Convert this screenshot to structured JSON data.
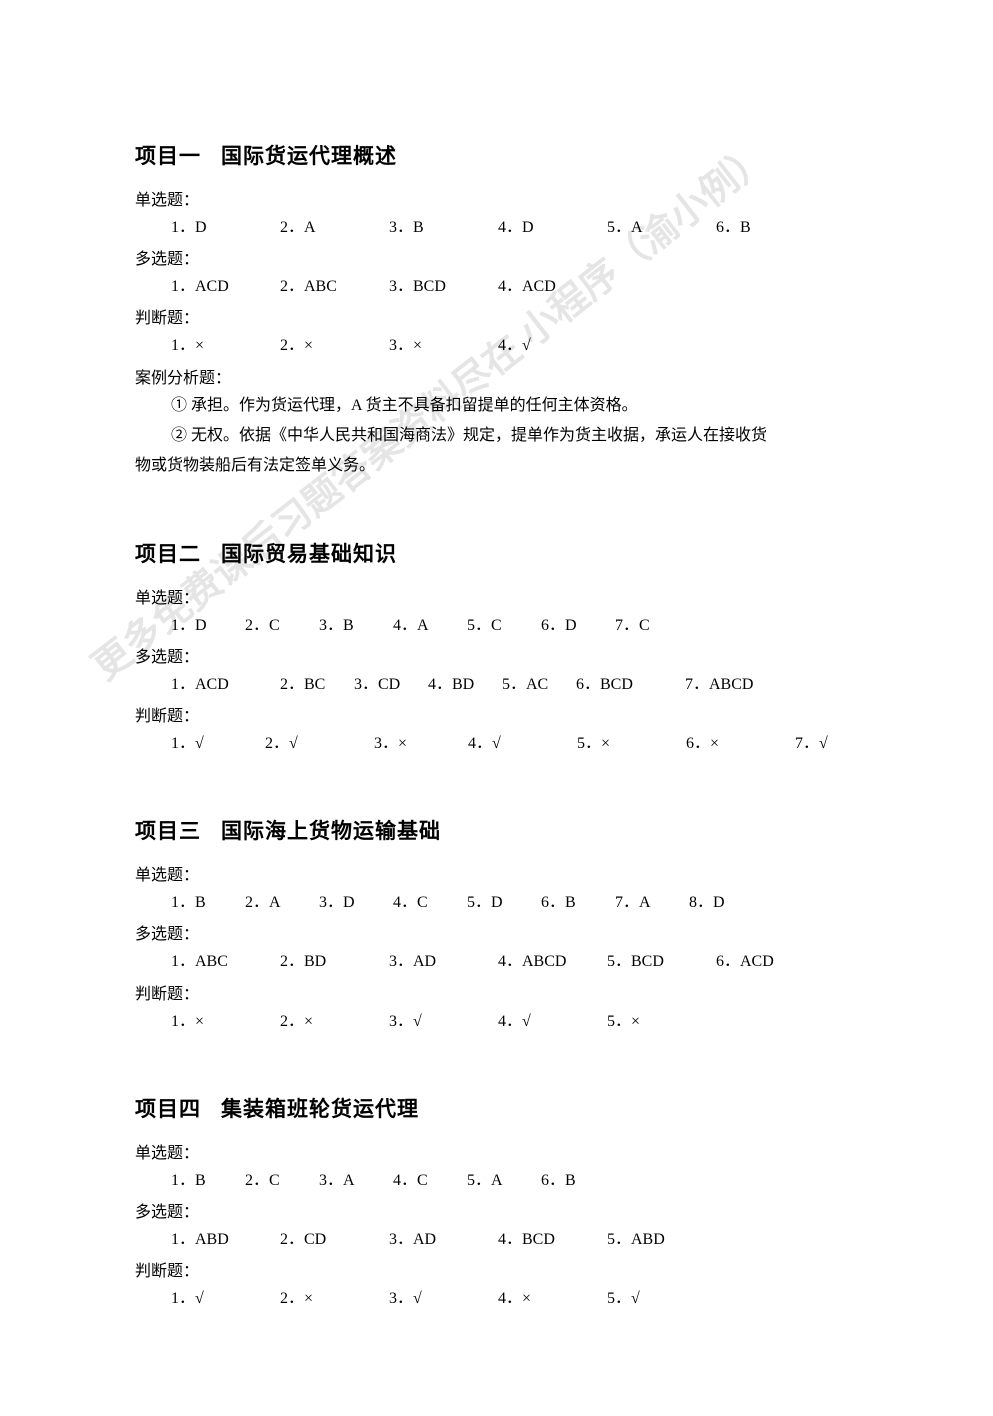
{
  "watermark": "更多免费课后习题答案资料尽在\n小程序（渝小例）",
  "sections": [
    {
      "title_prefix": "项目一",
      "title_main": "国际货运代理概述",
      "blocks": [
        {
          "label": "单选题：",
          "items": [
            "1．D",
            "2．A",
            "3．B",
            "4．D",
            "5．A",
            "6．B"
          ],
          "widths": [
            105,
            105,
            105,
            105,
            105,
            80
          ]
        },
        {
          "label": "多选题：",
          "items": [
            "1．ACD",
            "2．ABC",
            "3．BCD",
            "4．ACD"
          ],
          "widths": [
            105,
            105,
            105,
            105
          ]
        },
        {
          "label": "判断题：",
          "items": [
            "1．×",
            "2．×",
            "3．×",
            "4．√"
          ],
          "widths": [
            105,
            105,
            105,
            105
          ]
        }
      ],
      "case_label": "案例分析题：",
      "case_lines": [
        "① 承担。作为货运代理，A 货主不具备扣留提单的任何主体资格。",
        "② 无权。依据《中华人民共和国海商法》规定，提单作为货主收据，承运人在接收货"
      ],
      "case_cont": "物或货物装船后有法定签单义务。"
    },
    {
      "title_prefix": "项目二",
      "title_main": "国际贸易基础知识",
      "blocks": [
        {
          "label": "单选题：",
          "items": [
            "1．D",
            "2．C",
            "3．B",
            "4．A",
            "5．C",
            "6．D",
            "7．C"
          ],
          "widths": [
            70,
            70,
            70,
            70,
            70,
            70,
            70
          ]
        },
        {
          "label": "多选题：",
          "items": [
            "1．ACD",
            "2．BC",
            "3．CD",
            "4．BD",
            "5．AC",
            "6．BCD",
            "7．ABCD"
          ],
          "widths": [
            105,
            70,
            70,
            70,
            70,
            105,
            90
          ]
        },
        {
          "label": "判断题：",
          "items": [
            "1．√",
            "2．√",
            "3．×",
            "4．√",
            "5．×",
            "6．×",
            "7．√"
          ],
          "widths": [
            90,
            105,
            90,
            105,
            105,
            105,
            60
          ]
        }
      ]
    },
    {
      "title_prefix": "项目三",
      "title_main": "国际海上货物运输基础",
      "blocks": [
        {
          "label": "单选题：",
          "items": [
            "1．B",
            "2．A",
            "3．D",
            "4．C",
            "5．D",
            "6．B",
            "7．A",
            "8．D"
          ],
          "widths": [
            70,
            70,
            70,
            70,
            70,
            70,
            70,
            70
          ]
        },
        {
          "label": "多选题：",
          "items": [
            "1．ABC",
            "2．BD",
            "3．AD",
            "4．ABCD",
            "5．BCD",
            "6．ACD"
          ],
          "widths": [
            105,
            105,
            105,
            105,
            105,
            90
          ]
        },
        {
          "label": "判断题：",
          "items": [
            "1．×",
            "2．×",
            "3．√",
            "4．√",
            "5．×"
          ],
          "widths": [
            105,
            105,
            105,
            105,
            80
          ]
        }
      ]
    },
    {
      "title_prefix": "项目四",
      "title_main": "集装箱班轮货运代理",
      "blocks": [
        {
          "label": "单选题：",
          "items": [
            "1．B",
            "2．C",
            "3．A",
            "4．C",
            "5．A",
            "6．B"
          ],
          "widths": [
            70,
            70,
            70,
            70,
            70,
            70
          ]
        },
        {
          "label": "多选题：",
          "items": [
            "1．ABD",
            "2．CD",
            "3．AD",
            "4．BCD",
            "5．ABD"
          ],
          "widths": [
            105,
            105,
            105,
            105,
            90
          ]
        },
        {
          "label": "判断题：",
          "items": [
            "1．√",
            "2．×",
            "3．√",
            "4．×",
            "5．√"
          ],
          "widths": [
            105,
            105,
            105,
            105,
            80
          ]
        }
      ]
    }
  ]
}
